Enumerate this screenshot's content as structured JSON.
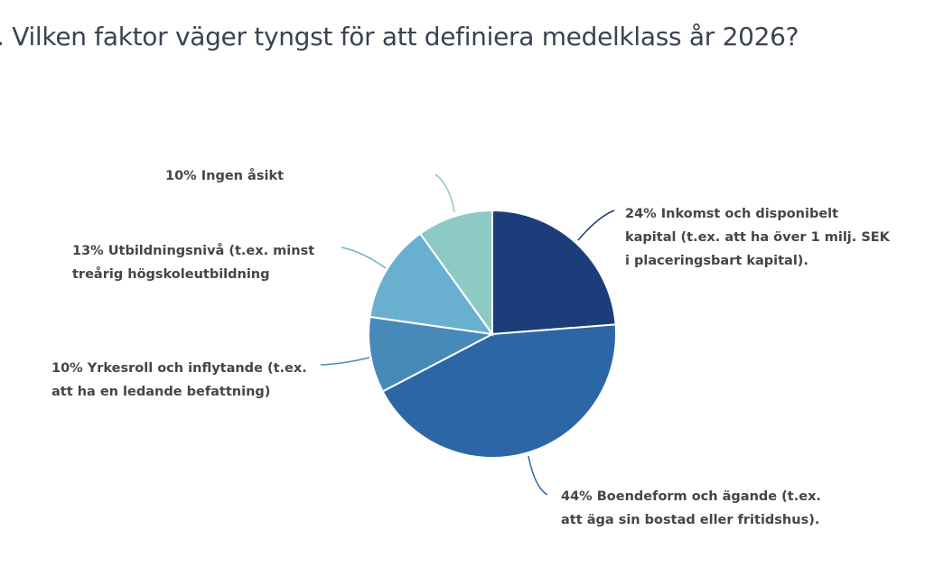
{
  "title": ". Vilken faktor väger tyngst för att definiera medelklass år 2026?",
  "chart_data": {
    "type": "pie",
    "title": ". Vilken faktor väger tyngst för att definiera medelklass år 2026?",
    "start_angle": "top",
    "direction": "clockwise",
    "slices": [
      {
        "value": 24,
        "color": "#1c3d7a",
        "label_lines": [
          "24% Inkomst och disponibelt",
          "kapital (t.ex. att ha över 1 milj. SEK",
          "i placeringsbart kapital)."
        ]
      },
      {
        "value": 44,
        "color": "#2d66a6",
        "label_lines": [
          "44% Boendeform och ägande (t.ex.",
          "att äga sin bostad eller fritidshus)."
        ]
      },
      {
        "value": 10,
        "color": "#4789b9",
        "label_lines": [
          "10% Yrkesroll och inflytande (t.ex.",
          "att ha en ledande befattning)"
        ]
      },
      {
        "value": 13,
        "color": "#69afd0",
        "label_lines": [
          "13% Utbildningsnivå (t.ex. minst",
          "treårig högskoleutbildning"
        ]
      },
      {
        "value": 10,
        "color": "#8ecac4",
        "label_lines": [
          "10% Ingen åsikt"
        ]
      }
    ]
  }
}
